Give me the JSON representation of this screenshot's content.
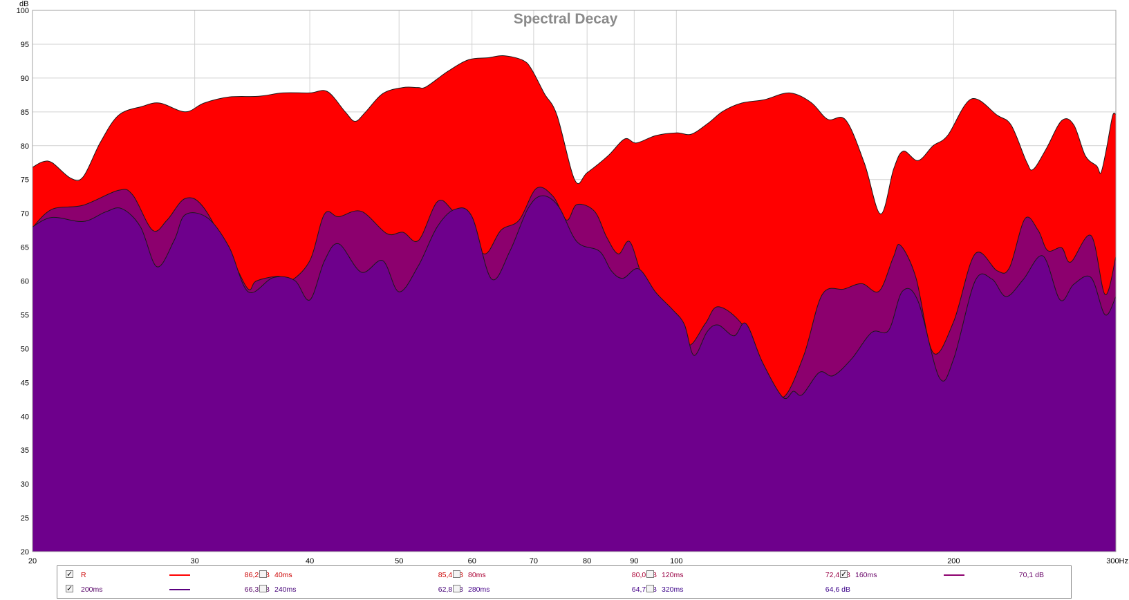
{
  "chart_data": {
    "type": "area",
    "title": "Spectral Decay",
    "ylabel": "dB",
    "x_scale": "log",
    "xlim": [
      20,
      300
    ],
    "ylim": [
      20,
      100
    ],
    "x_ticks": [
      {
        "value": 20,
        "label": "20"
      },
      {
        "value": 30,
        "label": "30"
      },
      {
        "value": 40,
        "label": "40"
      },
      {
        "value": 50,
        "label": "50"
      },
      {
        "value": 60,
        "label": "60"
      },
      {
        "value": 70,
        "label": "70"
      },
      {
        "value": 80,
        "label": "80"
      },
      {
        "value": 90,
        "label": "90"
      },
      {
        "value": 100,
        "label": "100"
      },
      {
        "value": 200,
        "label": "200"
      },
      {
        "value": 300,
        "label": "300Hz"
      }
    ],
    "y_ticks": [
      {
        "value": 20,
        "label": "20"
      },
      {
        "value": 25,
        "label": "25"
      },
      {
        "value": 30,
        "label": "30"
      },
      {
        "value": 35,
        "label": "35"
      },
      {
        "value": 40,
        "label": "40"
      },
      {
        "value": 45,
        "label": "45"
      },
      {
        "value": 50,
        "label": "50"
      },
      {
        "value": 55,
        "label": "55"
      },
      {
        "value": 60,
        "label": "60"
      },
      {
        "value": 65,
        "label": "65"
      },
      {
        "value": 70,
        "label": "70"
      },
      {
        "value": 75,
        "label": "75"
      },
      {
        "value": 80,
        "label": "80"
      },
      {
        "value": 85,
        "label": "85"
      },
      {
        "value": 90,
        "label": "90"
      },
      {
        "value": 95,
        "label": "95"
      },
      {
        "value": 100,
        "label": "100"
      }
    ],
    "y_top_label": "dB",
    "grid": true,
    "legend_position": "bottom",
    "series": [
      {
        "name": "R",
        "value_label": "86,2 dB",
        "checked": true,
        "color": "#ff0000",
        "text_color": "#cc0000",
        "visible": true,
        "points": [
          [
            20,
            76.8
          ],
          [
            20.5,
            77.6
          ],
          [
            21,
            77.5
          ],
          [
            22,
            75.2
          ],
          [
            22.7,
            75.4
          ],
          [
            23.7,
            80.5
          ],
          [
            24.8,
            84.5
          ],
          [
            26.3,
            85.8
          ],
          [
            27.5,
            86.3
          ],
          [
            29.3,
            85.0
          ],
          [
            30.7,
            86.3
          ],
          [
            32.7,
            87.2
          ],
          [
            35.2,
            87.3
          ],
          [
            37.4,
            87.8
          ],
          [
            40,
            87.8
          ],
          [
            41.8,
            88.0
          ],
          [
            43.7,
            85.0
          ],
          [
            44.8,
            83.6
          ],
          [
            46.0,
            85.0
          ],
          [
            48.0,
            87.7
          ],
          [
            50.5,
            88.6
          ],
          [
            52.4,
            88.6
          ],
          [
            53.5,
            88.7
          ],
          [
            56.5,
            91.0
          ],
          [
            59.5,
            92.7
          ],
          [
            62.5,
            93.0
          ],
          [
            65.0,
            93.3
          ],
          [
            68.2,
            92.6
          ],
          [
            69.7,
            91.2
          ],
          [
            71.9,
            87.7
          ],
          [
            74.2,
            84.5
          ],
          [
            77.6,
            74.9
          ],
          [
            80,
            76.0
          ],
          [
            84.3,
            78.5
          ],
          [
            87.9,
            81.0
          ],
          [
            90.5,
            80.4
          ],
          [
            95.0,
            81.5
          ],
          [
            100,
            81.9
          ],
          [
            103.8,
            81.7
          ],
          [
            108.2,
            83.3
          ],
          [
            112.4,
            85.1
          ],
          [
            117.7,
            86.3
          ],
          [
            124.6,
            86.8
          ],
          [
            132.7,
            87.8
          ],
          [
            140.0,
            86.4
          ],
          [
            146.0,
            83.9
          ],
          [
            152.7,
            83.8
          ],
          [
            160.0,
            77.4
          ],
          [
            166.6,
            69.9
          ],
          [
            172.1,
            76.5
          ],
          [
            176.3,
            79.2
          ],
          [
            183.0,
            77.8
          ],
          [
            190.0,
            80.0
          ],
          [
            197.0,
            81.5
          ],
          [
            209.0,
            86.9
          ],
          [
            223.0,
            84.5
          ],
          [
            231.0,
            83.0
          ],
          [
            240.0,
            77.6
          ],
          [
            244.0,
            76.5
          ],
          [
            252.0,
            79.5
          ],
          [
            262.0,
            83.7
          ],
          [
            270.0,
            83.1
          ],
          [
            278.0,
            78.5
          ],
          [
            286.0,
            77.0
          ],
          [
            289.0,
            76.0
          ],
          [
            293.0,
            79.5
          ],
          [
            297.5,
            84.4
          ],
          [
            300,
            84.6
          ]
        ]
      },
      {
        "name": "160ms",
        "value_label": "70,1 dB",
        "checked": true,
        "color": "#8c006e",
        "text_color": "#660066",
        "visible": true,
        "points": [
          [
            20,
            67.9
          ],
          [
            21,
            70.6
          ],
          [
            22.7,
            71.2
          ],
          [
            24.8,
            73.4
          ],
          [
            25.7,
            72.7
          ],
          [
            27,
            67.5
          ],
          [
            28.0,
            69.0
          ],
          [
            29.3,
            72.2
          ],
          [
            30.7,
            70.8
          ],
          [
            33.0,
            63.0
          ],
          [
            34.3,
            58.8
          ],
          [
            35.0,
            60.0
          ],
          [
            37.0,
            60.7
          ],
          [
            38.0,
            59.9
          ],
          [
            40.0,
            63.0
          ],
          [
            41.5,
            69.9
          ],
          [
            43.0,
            69.5
          ],
          [
            45.5,
            70.3
          ],
          [
            48.5,
            67.0
          ],
          [
            50.5,
            67.2
          ],
          [
            52.5,
            66.0
          ],
          [
            55.0,
            71.7
          ],
          [
            57.0,
            70.6
          ],
          [
            59.5,
            67.0
          ],
          [
            62.0,
            64.0
          ],
          [
            64.5,
            67.5
          ],
          [
            67.5,
            69.0
          ],
          [
            70.5,
            73.7
          ],
          [
            73.5,
            72.5
          ],
          [
            76.0,
            69.0
          ],
          [
            78.0,
            71.3
          ],
          [
            81.5,
            70.3
          ],
          [
            84.0,
            66.5
          ],
          [
            86.5,
            64.0
          ],
          [
            89.0,
            65.8
          ],
          [
            92.0,
            60.4
          ],
          [
            96.0,
            56.5
          ],
          [
            99.0,
            55.0
          ],
          [
            103.0,
            50.5
          ],
          [
            107.5,
            53.7
          ],
          [
            111.0,
            56.2
          ],
          [
            118.0,
            53.5
          ],
          [
            125.0,
            47.0
          ],
          [
            130.5,
            42.8
          ],
          [
            137.5,
            49.0
          ],
          [
            144.0,
            58.0
          ],
          [
            152.0,
            58.8
          ],
          [
            159.0,
            59.6
          ],
          [
            166.0,
            58.5
          ],
          [
            172.0,
            63.5
          ],
          [
            175.0,
            65.3
          ],
          [
            182.0,
            60.5
          ],
          [
            190.0,
            49.4
          ],
          [
            200.0,
            54.0
          ],
          [
            211.0,
            64.0
          ],
          [
            223.0,
            61.5
          ],
          [
            230.0,
            62.0
          ],
          [
            239.0,
            69.2
          ],
          [
            247.0,
            67.5
          ],
          [
            253.0,
            64.5
          ],
          [
            262.0,
            64.9
          ],
          [
            268.0,
            62.8
          ],
          [
            282.0,
            66.7
          ],
          [
            292.0,
            58.0
          ],
          [
            300,
            63.6
          ]
        ]
      },
      {
        "name": "200ms",
        "value_label": "66,3 dB",
        "checked": true,
        "color": "#6e008c",
        "text_color": "#330066",
        "visible": true,
        "points": [
          [
            20,
            68.0
          ],
          [
            21.0,
            69.4
          ],
          [
            22.7,
            68.8
          ],
          [
            24.0,
            70.2
          ],
          [
            25.0,
            70.7
          ],
          [
            26.2,
            68.0
          ],
          [
            27.3,
            62.1
          ],
          [
            28.5,
            66.0
          ],
          [
            29.3,
            69.8
          ],
          [
            31.0,
            69.3
          ],
          [
            32.7,
            65.0
          ],
          [
            34.3,
            58.4
          ],
          [
            36.5,
            60.5
          ],
          [
            38.5,
            60.1
          ],
          [
            40.0,
            57.2
          ],
          [
            41.5,
            63.0
          ],
          [
            43.0,
            65.5
          ],
          [
            45.5,
            61.3
          ],
          [
            48.0,
            63.0
          ],
          [
            50.0,
            58.4
          ],
          [
            52.5,
            62.3
          ],
          [
            55.0,
            68.0
          ],
          [
            57.5,
            70.6
          ],
          [
            60.0,
            69.5
          ],
          [
            63.0,
            60.3
          ],
          [
            66.0,
            64.5
          ],
          [
            69.0,
            70.7
          ],
          [
            71.5,
            72.6
          ],
          [
            74.5,
            71.0
          ],
          [
            78.0,
            65.8
          ],
          [
            82.5,
            64.4
          ],
          [
            85.0,
            61.5
          ],
          [
            87.5,
            60.4
          ],
          [
            91.0,
            61.8
          ],
          [
            95.0,
            58.3
          ],
          [
            99.0,
            55.8
          ],
          [
            102.0,
            53.6
          ],
          [
            104.5,
            49.0
          ],
          [
            108.0,
            52.5
          ],
          [
            111.0,
            53.5
          ],
          [
            115.5,
            51.9
          ],
          [
            119.0,
            53.7
          ],
          [
            124.0,
            48.0
          ],
          [
            130.5,
            42.8
          ],
          [
            134.0,
            43.7
          ],
          [
            137.0,
            43.2
          ],
          [
            143.0,
            46.5
          ],
          [
            148.0,
            46.0
          ],
          [
            155.0,
            48.5
          ],
          [
            163.0,
            52.4
          ],
          [
            170.0,
            52.7
          ],
          [
            176.0,
            58.5
          ],
          [
            183.0,
            57.0
          ],
          [
            193.0,
            45.7
          ],
          [
            200.0,
            48.5
          ],
          [
            211.0,
            60.0
          ],
          [
            220.0,
            60.3
          ],
          [
            228.0,
            57.7
          ],
          [
            238.0,
            60.2
          ],
          [
            250.0,
            63.7
          ],
          [
            261.0,
            57.2
          ],
          [
            270.0,
            59.5
          ],
          [
            282.0,
            60.5
          ],
          [
            292.0,
            55.0
          ],
          [
            300,
            57.7
          ]
        ]
      }
    ],
    "legend": [
      {
        "name": "R",
        "value": "86,2 dB",
        "checked": true,
        "swatch": "#ff0000",
        "text_color": "#cc0000"
      },
      {
        "name": "40ms",
        "value": "85,4 dB",
        "checked": false,
        "swatch": "",
        "text_color": "#cc0000"
      },
      {
        "name": "80ms",
        "value": "80,0 dB",
        "checked": false,
        "swatch": "",
        "text_color": "#aa0033"
      },
      {
        "name": "120ms",
        "value": "72,4 dB",
        "checked": false,
        "swatch": "",
        "text_color": "#990044"
      },
      {
        "name": "160ms",
        "value": "70,1 dB",
        "checked": true,
        "swatch": "#8c006e",
        "text_color": "#660066"
      },
      {
        "name": "200ms",
        "value": "66,3 dB",
        "checked": true,
        "swatch": "#5a0080",
        "text_color": "#550066"
      },
      {
        "name": "240ms",
        "value": "62,8 dB",
        "checked": false,
        "swatch": "",
        "text_color": "#440077"
      },
      {
        "name": "280ms",
        "value": "64,7 dB",
        "checked": false,
        "swatch": "",
        "text_color": "#440088"
      },
      {
        "name": "320ms",
        "value": "64,6 dB",
        "checked": false,
        "swatch": "",
        "text_color": "#3a0088"
      }
    ]
  }
}
